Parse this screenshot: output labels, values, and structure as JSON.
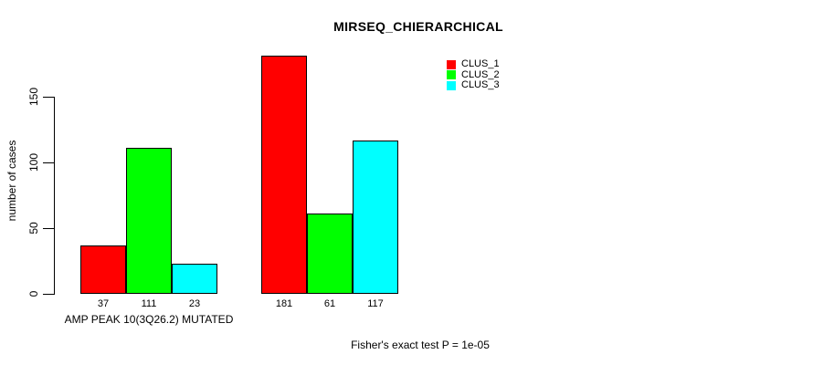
{
  "chart_data": {
    "type": "bar",
    "title": "MIRSEQ_CHIERARCHICAL",
    "ylabel": "number of cases",
    "xlabel": "",
    "footnote": "Fisher's exact test P = 1e-05",
    "categories": [
      "AMP PEAK 10(3Q26.2) MUTATED",
      ""
    ],
    "series": [
      {
        "name": "CLUS_1",
        "color": "#FF0000",
        "values": [
          37,
          181
        ]
      },
      {
        "name": "CLUS_2",
        "color": "#00FF00",
        "values": [
          111,
          61
        ]
      },
      {
        "name": "CLUS_3",
        "color": "#00FFFF",
        "values": [
          23,
          117
        ]
      }
    ],
    "yticks": [
      0,
      50,
      100,
      150
    ],
    "ylim": [
      0,
      181
    ],
    "grid": false,
    "legend_position": "top-right",
    "bar_value_labels_visible": true,
    "background": "#FFFFFF",
    "axis_color": "#000000",
    "bar_border_color": "#000000"
  }
}
